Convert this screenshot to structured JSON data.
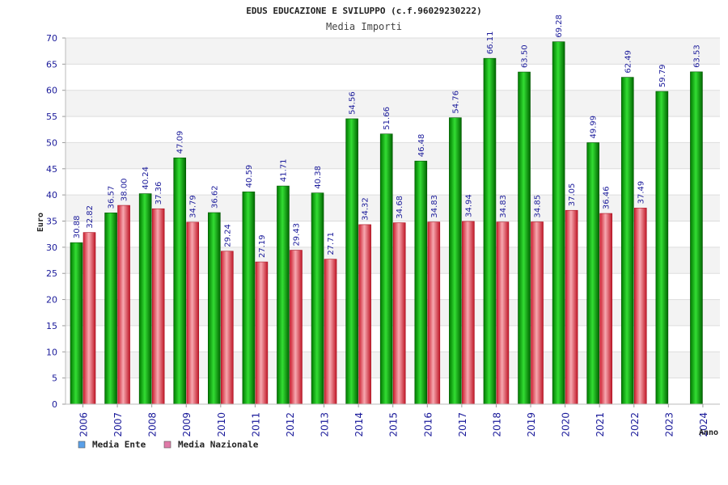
{
  "chart_data": {
    "type": "bar",
    "title": "EDUS EDUCAZIONE E SVILUPPO (c.f.96029230222)",
    "subtitle": "Media Importi",
    "xlabel": "Anno",
    "ylabel": "Euro",
    "ylim": [
      0,
      70
    ],
    "yticks": [
      0,
      5,
      10,
      15,
      20,
      25,
      30,
      35,
      40,
      45,
      50,
      55,
      60,
      65,
      70
    ],
    "grid": true,
    "legend_position": "bottom-left",
    "categories": [
      "2006",
      "2007",
      "2008",
      "2009",
      "2010",
      "2011",
      "2012",
      "2013",
      "2014",
      "2015",
      "2016",
      "2017",
      "2018",
      "2019",
      "2020",
      "2021",
      "2022",
      "2023",
      "2024"
    ],
    "series": [
      {
        "name": "Media Ente",
        "color": "#00a000",
        "legend_color": "#5aa0e8",
        "values": [
          30.88,
          36.57,
          40.24,
          47.09,
          36.62,
          40.59,
          41.71,
          40.38,
          54.56,
          51.66,
          46.48,
          54.76,
          66.11,
          63.5,
          69.28,
          49.99,
          62.49,
          59.79,
          63.53
        ],
        "labels": [
          "30.88",
          "36.57",
          "40.24",
          "47.09",
          "36.62",
          "40.59",
          "41.71",
          "40.38",
          "54.56",
          "51.66",
          "46.48",
          "54.76",
          "66.11",
          "63.50",
          "69.28",
          "49.99",
          "62.49",
          "59.79",
          "63.53"
        ]
      },
      {
        "name": "Media Nazionale",
        "color": "#e03040",
        "legend_color": "#e07aa8",
        "values": [
          32.82,
          38.0,
          37.36,
          34.79,
          29.24,
          27.19,
          29.43,
          27.71,
          34.32,
          34.68,
          34.83,
          34.94,
          34.83,
          34.85,
          37.05,
          36.46,
          37.49,
          null,
          null
        ],
        "labels": [
          "32.82",
          "38.00",
          "37.36",
          "34.79",
          "29.24",
          "27.19",
          "29.43",
          "27.71",
          "34.32",
          "34.68",
          "34.83",
          "34.94",
          "34.83",
          "34.85",
          "37.05",
          "36.46",
          "37.49",
          null,
          null
        ]
      }
    ]
  }
}
